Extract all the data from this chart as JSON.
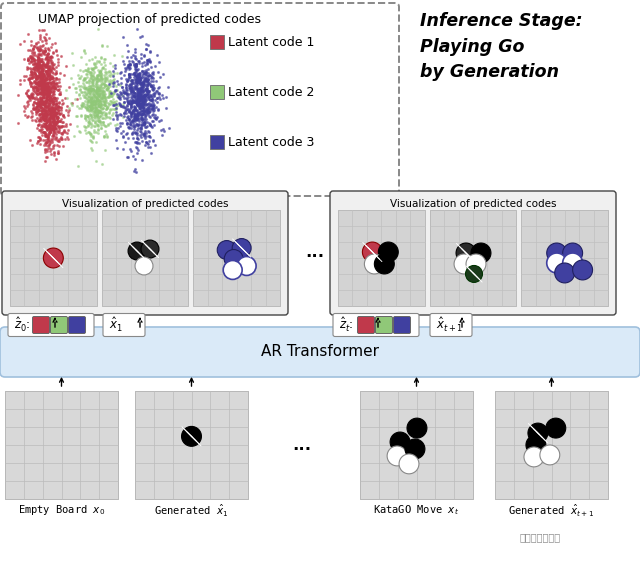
{
  "bg_color": "#ffffff",
  "umap_title": "UMAP projection of predicted codes",
  "legend_labels": [
    "Latent code 1",
    "Latent code 2",
    "Latent code 3"
  ],
  "legend_colors": [
    "#c0394b",
    "#90c878",
    "#4040a0"
  ],
  "inference_title": "Inference Stage:\nPlaying Go\nby Generation",
  "viz_title": "Visualization of predicted codes",
  "ar_label": "AR Transformer",
  "bottom_labels": [
    "Empty Board $x_0$",
    "Generated $\\hat{x}_1$",
    "KataGO Move $x_t$",
    "Generated $\\hat{x}_{t+1}$"
  ],
  "board_bg": "#d8d8d8",
  "grid_color": "#bbbbbb",
  "transformer_color": "#daeaf8",
  "transformer_edge": "#a0c0dd",
  "code_colors_row": [
    "#c0394b",
    "#90c878",
    "#4040a0"
  ],
  "red_color": "#c0394b",
  "green_color": "#90c878",
  "purple_color": "#4040a0",
  "viz_bg": "#f0f0f0",
  "umap_scatter_size": 1.5
}
